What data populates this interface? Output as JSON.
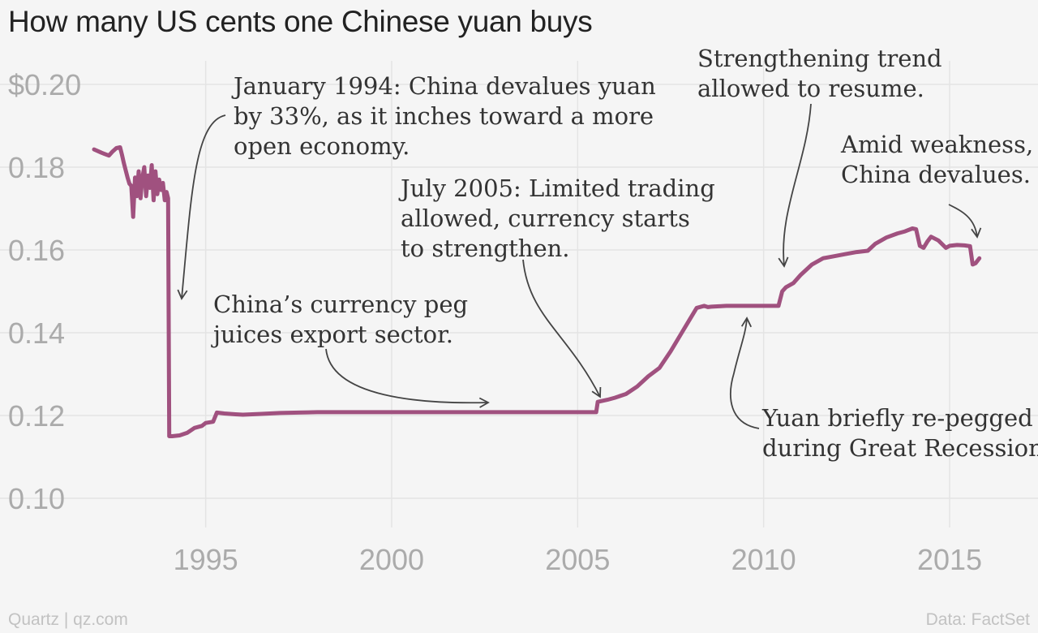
{
  "chart_data": {
    "type": "line",
    "title": "How many US cents one Chinese yuan buys",
    "xlabel": "",
    "ylabel": "",
    "xlim": [
      1992,
      2015.85
    ],
    "ylim": [
      0.1,
      0.2
    ],
    "x_ticks": [
      {
        "value": 1995,
        "label": "1995"
      },
      {
        "value": 2000,
        "label": "2000"
      },
      {
        "value": 2005,
        "label": "2005"
      },
      {
        "value": 2010,
        "label": "2010"
      },
      {
        "value": 2015,
        "label": "2015"
      }
    ],
    "y_ticks": [
      {
        "value": 0.1,
        "label": "0.10"
      },
      {
        "value": 0.12,
        "label": "0.12"
      },
      {
        "value": 0.14,
        "label": "0.14"
      },
      {
        "value": 0.16,
        "label": "0.16"
      },
      {
        "value": 0.18,
        "label": "0.18"
      },
      {
        "value": 0.2,
        "label": "$0.20"
      }
    ],
    "grid": true,
    "line_color": "#a0517f",
    "series": [
      {
        "x": [
          1992.0,
          1992.2,
          1992.4,
          1992.5,
          1992.6,
          1992.7,
          1992.75,
          1992.8,
          1992.9,
          1992.95,
          1993.0,
          1993.05,
          1993.1,
          1993.15,
          1993.2,
          1993.25,
          1993.3,
          1993.35,
          1993.4,
          1993.45,
          1993.5,
          1993.55,
          1993.6,
          1993.65,
          1993.7,
          1993.75,
          1993.8,
          1993.85,
          1993.9,
          1993.95,
          1993.99,
          1994.02,
          1994.1,
          1994.3,
          1994.5,
          1994.7,
          1994.9,
          1995.0,
          1995.2,
          1995.3,
          1995.5,
          1995.8,
          1996.0,
          1996.5,
          1997.0,
          1997.5,
          1998.0,
          1999.0,
          2000.0,
          2001.0,
          2002.0,
          2003.0,
          2004.0,
          2005.0,
          2005.5,
          2005.54,
          2005.8,
          2006.0,
          2006.3,
          2006.6,
          2006.9,
          2007.2,
          2007.5,
          2007.8,
          2008.0,
          2008.2,
          2008.4,
          2008.5,
          2008.6,
          2008.8,
          2009.0,
          2009.5,
          2010.0,
          2010.4,
          2010.5,
          2010.6,
          2010.8,
          2011.0,
          2011.3,
          2011.6,
          2011.9,
          2012.2,
          2012.5,
          2012.8,
          2013.0,
          2013.3,
          2013.6,
          2013.8,
          2014.0,
          2014.1,
          2014.2,
          2014.3,
          2014.4,
          2014.5,
          2014.7,
          2014.9,
          2015.0,
          2015.2,
          2015.4,
          2015.55,
          2015.62,
          2015.7,
          2015.8
        ],
        "y": [
          0.1843,
          0.1835,
          0.1828,
          0.1838,
          0.1846,
          0.1848,
          0.183,
          0.181,
          0.1775,
          0.176,
          0.1755,
          0.168,
          0.1775,
          0.173,
          0.179,
          0.1725,
          0.1775,
          0.18,
          0.173,
          0.178,
          0.175,
          0.1805,
          0.172,
          0.179,
          0.1735,
          0.177,
          0.1745,
          0.1762,
          0.172,
          0.174,
          0.1725,
          0.115,
          0.115,
          0.1152,
          0.1158,
          0.117,
          0.1175,
          0.1182,
          0.1185,
          0.1207,
          0.1205,
          0.1203,
          0.1202,
          0.1204,
          0.1206,
          0.1207,
          0.1208,
          0.1208,
          0.1208,
          0.1208,
          0.1208,
          0.1208,
          0.1208,
          0.1208,
          0.1208,
          0.1233,
          0.1238,
          0.1243,
          0.1252,
          0.127,
          0.1295,
          0.1315,
          0.1355,
          0.14,
          0.143,
          0.146,
          0.1465,
          0.1462,
          0.1463,
          0.1464,
          0.1465,
          0.1465,
          0.1465,
          0.1465,
          0.15,
          0.151,
          0.152,
          0.154,
          0.1565,
          0.158,
          0.1585,
          0.159,
          0.1595,
          0.1598,
          0.1615,
          0.163,
          0.164,
          0.1645,
          0.1652,
          0.165,
          0.161,
          0.1605,
          0.162,
          0.1632,
          0.1623,
          0.1605,
          0.161,
          0.1612,
          0.1611,
          0.1609,
          0.1565,
          0.1568,
          0.158
        ]
      }
    ],
    "annotations": [
      {
        "lines": [
          "January 1994: China devalues yuan",
          "by 33%, as it inches toward a more",
          "open economy."
        ]
      },
      {
        "lines": [
          "China’s currency peg",
          "juices export sector."
        ]
      },
      {
        "lines": [
          "July 2005: Limited trading",
          "allowed, currency starts",
          "to strengthen."
        ]
      },
      {
        "lines": [
          "Strengthening trend",
          "allowed to resume."
        ]
      },
      {
        "lines": [
          "Amid weakness,",
          "China devalues."
        ]
      },
      {
        "lines": [
          "Yuan briefly re-pegged",
          "during Great Recession."
        ]
      }
    ]
  },
  "footer": {
    "source_left": "Quartz | qz.com",
    "source_right": "Data: FactSet"
  }
}
